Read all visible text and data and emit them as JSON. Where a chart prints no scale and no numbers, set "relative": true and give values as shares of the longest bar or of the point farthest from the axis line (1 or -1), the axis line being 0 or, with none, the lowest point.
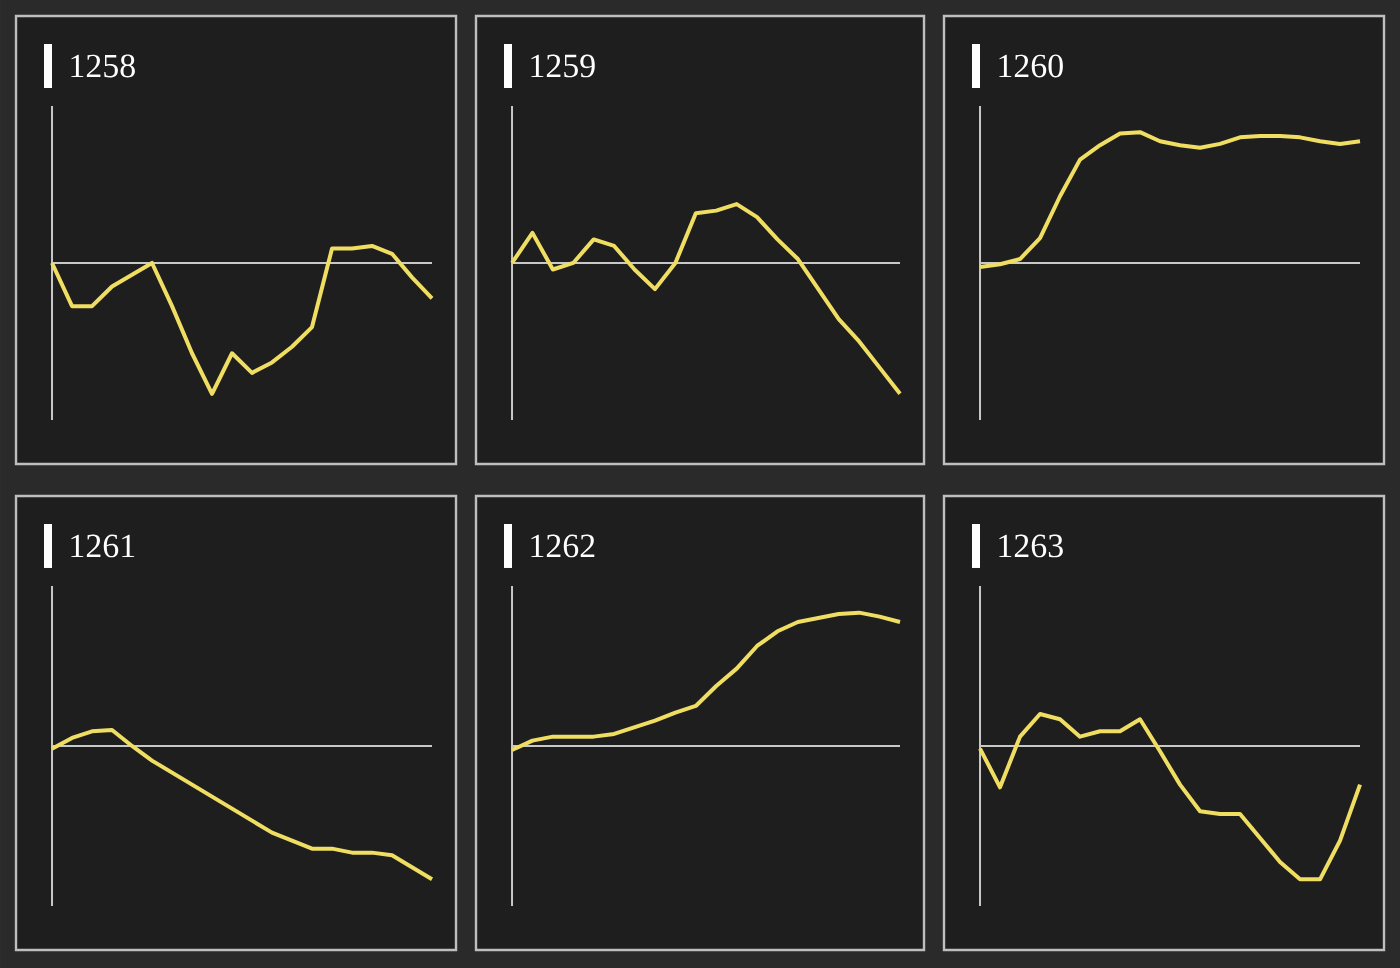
{
  "chart_data": [
    {
      "type": "line",
      "title": "1258",
      "relative": true,
      "color": "#f0de62",
      "categories": [
        null,
        null,
        null,
        null,
        null,
        null,
        null,
        null,
        null,
        null,
        null,
        null,
        null,
        null,
        null,
        null,
        null,
        null,
        null,
        null
      ],
      "values": [
        0,
        -0.33,
        -0.33,
        -0.18,
        -0.09,
        0,
        -0.33,
        -0.69,
        -1,
        -0.69,
        -0.84,
        -0.76,
        -0.64,
        -0.49,
        0.11,
        0.11,
        0.13,
        0.07,
        -0.11,
        -0.27
      ]
    },
    {
      "type": "line",
      "title": "1259",
      "relative": true,
      "color": "#f0de62",
      "categories": [
        null,
        null,
        null,
        null,
        null,
        null,
        null,
        null,
        null,
        null,
        null,
        null,
        null,
        null,
        null,
        null,
        null,
        null,
        null,
        null
      ],
      "values": [
        0,
        0.23,
        -0.05,
        0,
        0.18,
        0.13,
        -0.05,
        -0.2,
        0,
        0.38,
        0.4,
        0.45,
        0.35,
        0.18,
        0.03,
        -0.2,
        -0.43,
        -0.6,
        -0.8,
        -1
      ]
    },
    {
      "type": "line",
      "title": "1260",
      "relative": true,
      "color": "#f0de62",
      "categories": [
        null,
        null,
        null,
        null,
        null,
        null,
        null,
        null,
        null,
        null,
        null,
        null,
        null,
        null,
        null,
        null,
        null,
        null,
        null,
        null
      ],
      "values": [
        -0.03,
        -0.01,
        0.03,
        0.19,
        0.51,
        0.79,
        0.9,
        0.99,
        1,
        0.93,
        0.9,
        0.88,
        0.91,
        0.96,
        0.97,
        0.97,
        0.96,
        0.93,
        0.91,
        0.93
      ]
    },
    {
      "type": "line",
      "title": "1261",
      "relative": true,
      "color": "#f0de62",
      "categories": [
        null,
        null,
        null,
        null,
        null,
        null,
        null,
        null,
        null,
        null,
        null,
        null,
        null,
        null,
        null,
        null,
        null,
        null,
        null,
        null
      ],
      "values": [
        -0.02,
        0.06,
        0.11,
        0.12,
        0,
        -0.11,
        -0.2,
        -0.29,
        -0.38,
        -0.47,
        -0.56,
        -0.65,
        -0.71,
        -0.77,
        -0.77,
        -0.8,
        -0.8,
        -0.82,
        -0.91,
        -1
      ]
    },
    {
      "type": "line",
      "title": "1262",
      "relative": true,
      "color": "#f0de62",
      "categories": [
        null,
        null,
        null,
        null,
        null,
        null,
        null,
        null,
        null,
        null,
        null,
        null,
        null,
        null,
        null,
        null,
        null,
        null,
        null,
        null
      ],
      "values": [
        -0.03,
        0.04,
        0.07,
        0.07,
        0.07,
        0.09,
        0.14,
        0.19,
        0.25,
        0.3,
        0.45,
        0.58,
        0.75,
        0.86,
        0.93,
        0.96,
        0.99,
        1,
        0.97,
        0.93
      ]
    },
    {
      "type": "line",
      "title": "1263",
      "relative": true,
      "color": "#f0de62",
      "categories": [
        null,
        null,
        null,
        null,
        null,
        null,
        null,
        null,
        null,
        null,
        null,
        null,
        null,
        null,
        null,
        null,
        null,
        null,
        null,
        null
      ],
      "values": [
        -0.02,
        -0.31,
        0.07,
        0.24,
        0.2,
        0.07,
        0.11,
        0.11,
        0.2,
        -0.04,
        -0.29,
        -0.49,
        -0.51,
        -0.51,
        -0.69,
        -0.87,
        -1,
        -1,
        -0.71,
        -0.29
      ]
    }
  ]
}
